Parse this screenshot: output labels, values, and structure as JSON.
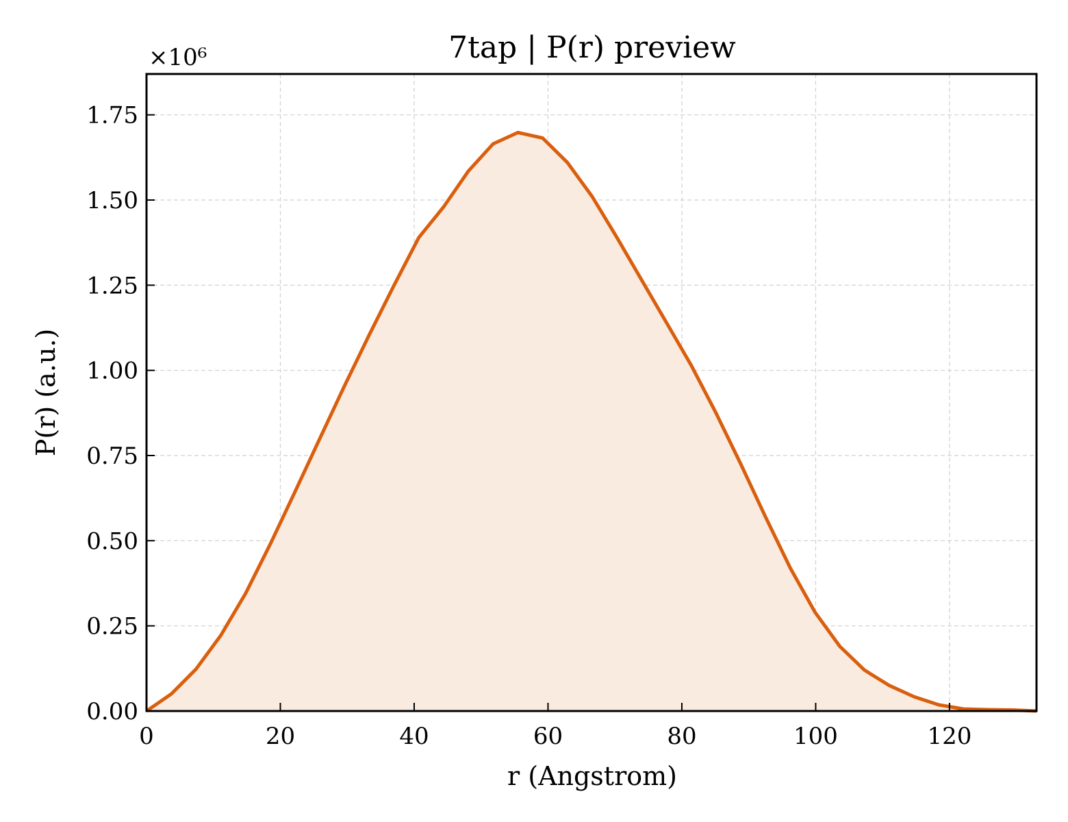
{
  "chart_data": {
    "type": "area",
    "title": "7tap | P(r) preview",
    "xlabel": "r (Angstrom)",
    "ylabel": "P(r) (a.u.)",
    "y_multiplier_label": "×10⁶",
    "xlim": [
      0,
      133
    ],
    "ylim": [
      0,
      1.87
    ],
    "xticks": [
      0,
      20,
      40,
      60,
      80,
      100,
      120
    ],
    "yticks": [
      0.0,
      0.25,
      0.5,
      0.75,
      1.0,
      1.25,
      1.5,
      1.75
    ],
    "ytick_labels": [
      "0.00",
      "0.25",
      "0.50",
      "0.75",
      "1.00",
      "1.25",
      "1.50",
      "1.75"
    ],
    "grid": true,
    "line_color": "#d95f0e",
    "fill_color": "#f9ebe0",
    "series": [
      {
        "x": [
          0,
          3.7,
          7.4,
          11.1,
          14.8,
          18.5,
          22.2,
          25.9,
          29.6,
          33.3,
          37.0,
          40.7,
          44.4,
          48.1,
          51.8,
          55.5,
          59.2,
          62.9,
          66.6,
          70.3,
          74.0,
          77.7,
          81.4,
          85.1,
          88.8,
          92.5,
          96.2,
          99.9,
          103.6,
          107.3,
          111.0,
          114.7,
          118.4,
          122.1,
          125.8,
          129.5,
          133.0
        ],
        "y": [
          0.0,
          0.05,
          0.123,
          0.222,
          0.345,
          0.49,
          0.644,
          0.8,
          0.955,
          1.105,
          1.25,
          1.39,
          1.48,
          1.585,
          1.665,
          1.698,
          1.682,
          1.61,
          1.51,
          1.39,
          1.265,
          1.14,
          1.015,
          0.875,
          0.725,
          0.57,
          0.42,
          0.29,
          0.19,
          0.12,
          0.075,
          0.042,
          0.018,
          0.006,
          0.004,
          0.003,
          0.0
        ]
      }
    ]
  }
}
